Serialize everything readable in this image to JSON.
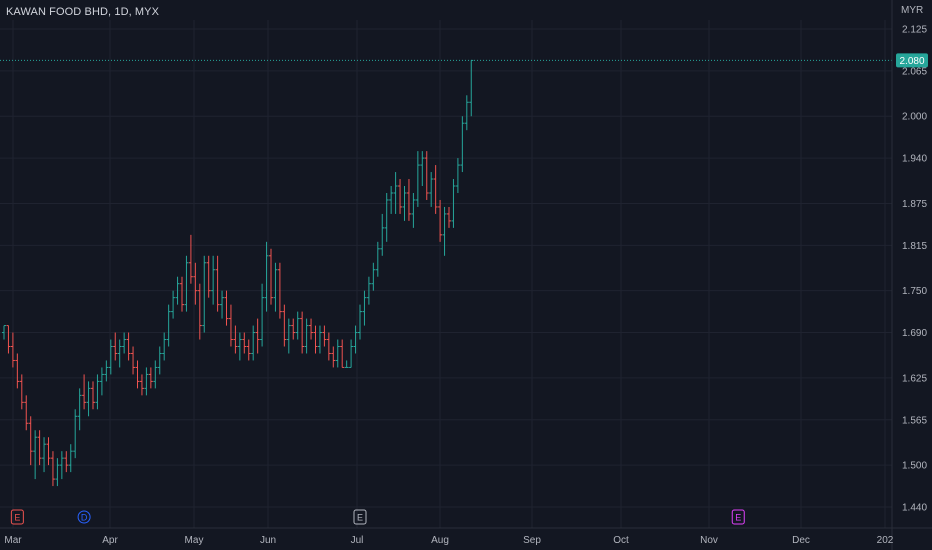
{
  "header": {
    "title": "KAWAN FOOD BHD, 1D, MYX",
    "currency": "MYR"
  },
  "colors": {
    "background": "#131722",
    "grid": "#1f2330",
    "up": "#26a69a",
    "down": "#ef5350",
    "text": "#b2b5be"
  },
  "last_price": {
    "value": "2.080"
  },
  "events": [
    {
      "label": "E",
      "color": "#ef5350",
      "shape": "square",
      "day": 3
    },
    {
      "label": "D",
      "color": "#2962ff",
      "shape": "circle",
      "day": 18
    },
    {
      "label": "E",
      "color": "#b2b5be",
      "shape": "square",
      "day": 80
    },
    {
      "label": "E",
      "color": "#e040fb",
      "shape": "square",
      "day": 165
    }
  ],
  "chart_data": {
    "type": "ohlc",
    "y_ticks": [
      "2.125",
      "2.065",
      "2.000",
      "1.940",
      "1.875",
      "1.815",
      "1.750",
      "1.690",
      "1.625",
      "1.565",
      "1.500",
      "1.440"
    ],
    "x_ticks": [
      "Mar",
      "Apr",
      "May",
      "Jun",
      "Jul",
      "Aug",
      "Sep",
      "Oct",
      "Nov",
      "Dec",
      "202"
    ],
    "ylim": [
      1.43,
      2.135
    ],
    "last_price": 2.08,
    "bars": [
      [
        1.69,
        1.7,
        1.68,
        1.7
      ],
      [
        1.7,
        1.7,
        1.66,
        1.67
      ],
      [
        1.67,
        1.69,
        1.64,
        1.65
      ],
      [
        1.65,
        1.66,
        1.61,
        1.62
      ],
      [
        1.62,
        1.63,
        1.58,
        1.59
      ],
      [
        1.59,
        1.6,
        1.55,
        1.56
      ],
      [
        1.56,
        1.57,
        1.5,
        1.52
      ],
      [
        1.52,
        1.55,
        1.48,
        1.54
      ],
      [
        1.54,
        1.55,
        1.5,
        1.51
      ],
      [
        1.51,
        1.54,
        1.49,
        1.53
      ],
      [
        1.53,
        1.54,
        1.5,
        1.51
      ],
      [
        1.51,
        1.52,
        1.47,
        1.48
      ],
      [
        1.48,
        1.51,
        1.47,
        1.5
      ],
      [
        1.5,
        1.52,
        1.48,
        1.51
      ],
      [
        1.51,
        1.52,
        1.49,
        1.5
      ],
      [
        1.5,
        1.53,
        1.49,
        1.52
      ],
      [
        1.52,
        1.58,
        1.51,
        1.57
      ],
      [
        1.57,
        1.61,
        1.55,
        1.6
      ],
      [
        1.6,
        1.63,
        1.58,
        1.59
      ],
      [
        1.59,
        1.62,
        1.57,
        1.61
      ],
      [
        1.61,
        1.62,
        1.58,
        1.59
      ],
      [
        1.59,
        1.63,
        1.58,
        1.62
      ],
      [
        1.62,
        1.64,
        1.6,
        1.63
      ],
      [
        1.63,
        1.65,
        1.62,
        1.64
      ],
      [
        1.64,
        1.68,
        1.63,
        1.67
      ],
      [
        1.67,
        1.69,
        1.65,
        1.66
      ],
      [
        1.66,
        1.68,
        1.64,
        1.67
      ],
      [
        1.67,
        1.69,
        1.66,
        1.68
      ],
      [
        1.68,
        1.69,
        1.65,
        1.66
      ],
      [
        1.66,
        1.67,
        1.63,
        1.64
      ],
      [
        1.64,
        1.65,
        1.61,
        1.62
      ],
      [
        1.62,
        1.63,
        1.6,
        1.61
      ],
      [
        1.61,
        1.64,
        1.6,
        1.63
      ],
      [
        1.63,
        1.64,
        1.61,
        1.62
      ],
      [
        1.62,
        1.65,
        1.61,
        1.64
      ],
      [
        1.64,
        1.67,
        1.63,
        1.66
      ],
      [
        1.66,
        1.69,
        1.65,
        1.68
      ],
      [
        1.68,
        1.73,
        1.67,
        1.72
      ],
      [
        1.72,
        1.75,
        1.71,
        1.74
      ],
      [
        1.74,
        1.77,
        1.73,
        1.76
      ],
      [
        1.76,
        1.77,
        1.72,
        1.73
      ],
      [
        1.73,
        1.8,
        1.72,
        1.79
      ],
      [
        1.79,
        1.83,
        1.76,
        1.77
      ],
      [
        1.77,
        1.79,
        1.73,
        1.75
      ],
      [
        1.75,
        1.76,
        1.68,
        1.7
      ],
      [
        1.7,
        1.8,
        1.69,
        1.79
      ],
      [
        1.79,
        1.8,
        1.74,
        1.75
      ],
      [
        1.75,
        1.8,
        1.73,
        1.78
      ],
      [
        1.78,
        1.8,
        1.72,
        1.73
      ],
      [
        1.73,
        1.75,
        1.71,
        1.74
      ],
      [
        1.74,
        1.75,
        1.7,
        1.71
      ],
      [
        1.71,
        1.73,
        1.67,
        1.68
      ],
      [
        1.68,
        1.7,
        1.66,
        1.67
      ],
      [
        1.67,
        1.69,
        1.65,
        1.68
      ],
      [
        1.68,
        1.69,
        1.66,
        1.67
      ],
      [
        1.67,
        1.68,
        1.65,
        1.66
      ],
      [
        1.66,
        1.7,
        1.65,
        1.69
      ],
      [
        1.69,
        1.71,
        1.66,
        1.68
      ],
      [
        1.68,
        1.76,
        1.67,
        1.74
      ],
      [
        1.74,
        1.82,
        1.72,
        1.8
      ],
      [
        1.8,
        1.81,
        1.73,
        1.74
      ],
      [
        1.74,
        1.79,
        1.72,
        1.78
      ],
      [
        1.78,
        1.79,
        1.71,
        1.72
      ],
      [
        1.72,
        1.73,
        1.67,
        1.68
      ],
      [
        1.68,
        1.71,
        1.66,
        1.7
      ],
      [
        1.7,
        1.71,
        1.68,
        1.69
      ],
      [
        1.69,
        1.72,
        1.68,
        1.71
      ],
      [
        1.71,
        1.72,
        1.66,
        1.67
      ],
      [
        1.67,
        1.71,
        1.66,
        1.7
      ],
      [
        1.7,
        1.71,
        1.68,
        1.69
      ],
      [
        1.69,
        1.7,
        1.66,
        1.67
      ],
      [
        1.67,
        1.7,
        1.66,
        1.69
      ],
      [
        1.69,
        1.7,
        1.67,
        1.68
      ],
      [
        1.68,
        1.69,
        1.65,
        1.66
      ],
      [
        1.66,
        1.67,
        1.64,
        1.65
      ],
      [
        1.65,
        1.68,
        1.64,
        1.67
      ],
      [
        1.67,
        1.68,
        1.64,
        1.64
      ],
      [
        1.64,
        1.65,
        1.64,
        1.64
      ],
      [
        1.64,
        1.68,
        1.64,
        1.67
      ],
      [
        1.67,
        1.7,
        1.66,
        1.69
      ],
      [
        1.69,
        1.73,
        1.68,
        1.72
      ],
      [
        1.72,
        1.75,
        1.7,
        1.74
      ],
      [
        1.74,
        1.77,
        1.73,
        1.76
      ],
      [
        1.76,
        1.79,
        1.75,
        1.78
      ],
      [
        1.78,
        1.82,
        1.77,
        1.81
      ],
      [
        1.81,
        1.86,
        1.8,
        1.84
      ],
      [
        1.84,
        1.89,
        1.82,
        1.88
      ],
      [
        1.88,
        1.9,
        1.86,
        1.89
      ],
      [
        1.89,
        1.92,
        1.86,
        1.9
      ],
      [
        1.9,
        1.91,
        1.86,
        1.87
      ],
      [
        1.87,
        1.9,
        1.85,
        1.89
      ],
      [
        1.89,
        1.91,
        1.85,
        1.86
      ],
      [
        1.86,
        1.89,
        1.84,
        1.88
      ],
      [
        1.88,
        1.95,
        1.87,
        1.93
      ],
      [
        1.93,
        1.95,
        1.9,
        1.94
      ],
      [
        1.94,
        1.95,
        1.88,
        1.89
      ],
      [
        1.89,
        1.92,
        1.87,
        1.91
      ],
      [
        1.91,
        1.93,
        1.86,
        1.87
      ],
      [
        1.87,
        1.88,
        1.82,
        1.83
      ],
      [
        1.83,
        1.87,
        1.8,
        1.86
      ],
      [
        1.86,
        1.87,
        1.84,
        1.85
      ],
      [
        1.85,
        1.91,
        1.84,
        1.9
      ],
      [
        1.9,
        1.94,
        1.89,
        1.93
      ],
      [
        1.93,
        2.0,
        1.92,
        1.99
      ],
      [
        1.99,
        2.03,
        1.98,
        2.02
      ],
      [
        2.02,
        2.08,
        2.0,
        2.08
      ]
    ]
  }
}
